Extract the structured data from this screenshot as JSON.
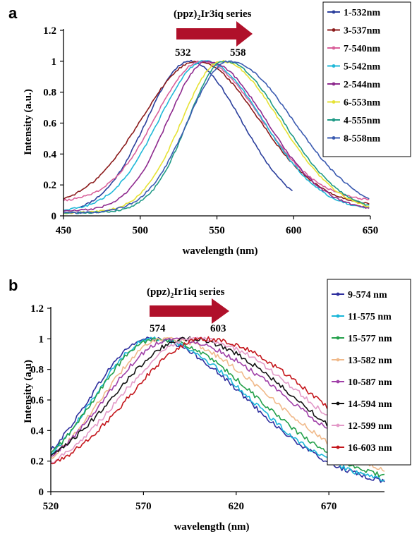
{
  "chart_data": [
    {
      "panel": "a",
      "type": "line",
      "annotation": {
        "title_pre": "(ppz)",
        "title_sub": "2",
        "title_post": "Ir3iq series",
        "start": "532",
        "end": "558"
      },
      "xlabel": "wavelength (nm)",
      "ylabel": "Intensity (a.u.)",
      "xlim": [
        450,
        650
      ],
      "ylim": [
        0,
        1.2
      ],
      "xticks": [
        "450",
        "500",
        "550",
        "600",
        "650"
      ],
      "yticks": [
        "0",
        "0.2",
        "0.4",
        "0.6",
        "0.8",
        "1",
        "1.2"
      ],
      "legend_position": "top-right",
      "series": [
        {
          "name": "1-532nm",
          "color": "#2b3f9c",
          "peak": 532,
          "wl": 28,
          "wr": 34,
          "base": 0.02,
          "xmin": 460,
          "xmax": 600
        },
        {
          "name": "3-537nm",
          "color": "#8b1a1a",
          "peak": 537,
          "wl": 36,
          "wr": 40,
          "base": 0.06,
          "xmin": 450,
          "xmax": 650
        },
        {
          "name": "7-540nm",
          "color": "#d9609a",
          "peak": 540,
          "wl": 30,
          "wr": 38,
          "base": 0.09,
          "xmin": 450,
          "xmax": 650
        },
        {
          "name": "5-542nm",
          "color": "#20b8d8",
          "peak": 542,
          "wl": 30,
          "wr": 38,
          "base": 0.03,
          "xmin": 450,
          "xmax": 650
        },
        {
          "name": "2-544nm",
          "color": "#8e2a8e",
          "peak": 544,
          "wl": 26,
          "wr": 38,
          "base": 0.03,
          "xmin": 450,
          "xmax": 650
        },
        {
          "name": "6-553nm",
          "color": "#e6e234",
          "peak": 553,
          "wl": 26,
          "wr": 38,
          "base": 0.02,
          "xmin": 450,
          "xmax": 650
        },
        {
          "name": "4-555nm",
          "color": "#1f9a86",
          "peak": 555,
          "wl": 24,
          "wr": 38,
          "base": 0.02,
          "xmin": 450,
          "xmax": 650
        },
        {
          "name": "8-558nm",
          "color": "#3a5ab0",
          "peak": 558,
          "wl": 27,
          "wr": 42,
          "base": 0.02,
          "xmin": 450,
          "xmax": 650
        }
      ]
    },
    {
      "panel": "b",
      "type": "line",
      "annotation": {
        "title_pre": "(ppz)",
        "title_sub": "2",
        "title_post": "Ir1iq series",
        "start": "574",
        "end": "603"
      },
      "xlabel": "wavelength (nm)",
      "ylabel": "Intensity (a.u)",
      "xlim": [
        520,
        700
      ],
      "ylim": [
        0,
        1.2
      ],
      "xticks": [
        "520",
        "570",
        "620",
        "670"
      ],
      "yticks": [
        "0",
        "0.2",
        "0.4",
        "0.6",
        "0.8",
        "1",
        "1.2"
      ],
      "legend_position": "top-right",
      "series": [
        {
          "name": "9-574 nm",
          "color": "#2e2f9e",
          "peak": 573,
          "wl": 32,
          "wr": 52,
          "base": 0.02,
          "xmin": 520,
          "xmax": 700
        },
        {
          "name": "11-575 nm",
          "color": "#1ab6d8",
          "peak": 575,
          "wl": 32,
          "wr": 52,
          "base": 0.02,
          "xmin": 520,
          "xmax": 700
        },
        {
          "name": "15-577 nm",
          "color": "#23a04a",
          "peak": 577,
          "wl": 33,
          "wr": 54,
          "base": 0.03,
          "xmin": 520,
          "xmax": 700
        },
        {
          "name": "13-582 nm",
          "color": "#f0b98a",
          "peak": 582,
          "wl": 34,
          "wr": 56,
          "base": 0.04,
          "xmin": 520,
          "xmax": 700
        },
        {
          "name": "10-587 nm",
          "color": "#a040a8",
          "peak": 586,
          "wl": 36,
          "wr": 60,
          "base": 0.05,
          "xmin": 520,
          "xmax": 700
        },
        {
          "name": "14-594 nm",
          "color": "#111111",
          "peak": 594,
          "wl": 40,
          "wr": 56,
          "base": 0.06,
          "xmin": 520,
          "xmax": 700
        },
        {
          "name": "12-599 nm",
          "color": "#e39ac8",
          "peak": 598,
          "wl": 40,
          "wr": 58,
          "base": 0.05,
          "xmin": 520,
          "xmax": 700
        },
        {
          "name": "16-603 nm",
          "color": "#c4161c",
          "peak": 603,
          "wl": 40,
          "wr": 58,
          "base": 0.07,
          "xmin": 520,
          "xmax": 700
        }
      ]
    }
  ],
  "arrow_color": "#b0102a"
}
